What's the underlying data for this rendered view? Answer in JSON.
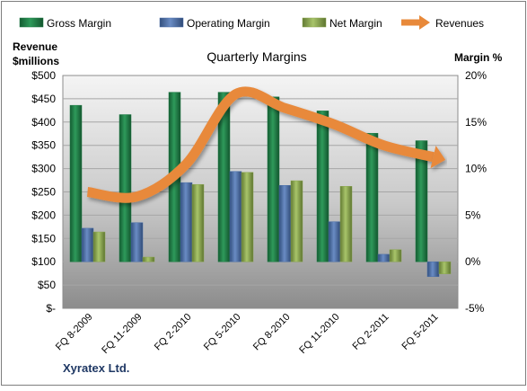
{
  "chart_data": {
    "type": "bar",
    "title": "Quarterly Margins",
    "company": "Xyratex Ltd.",
    "left_axis": {
      "label_line1": "Revenue",
      "label_line2": "$millions",
      "ylim": [
        0,
        500
      ],
      "ticks": [
        "$-",
        "$50",
        "$100",
        "$150",
        "$200",
        "$250",
        "$300",
        "$350",
        "$400",
        "$450",
        "$500"
      ]
    },
    "right_axis": {
      "label": "Margin %",
      "ylim": [
        -5,
        20
      ],
      "ticks": [
        "-5%",
        "0%",
        "5%",
        "10%",
        "15%",
        "20%"
      ]
    },
    "categories": [
      "FQ 8-2009",
      "FQ 11-2009",
      "FQ 2-2010",
      "FQ 5-2010",
      "FQ 8-2010",
      "FQ 11-2010",
      "FQ 2-2011",
      "FQ 5-2011"
    ],
    "series": [
      {
        "name": "Gross Margin",
        "type": "bar",
        "axis": "right",
        "color": "#1e7a45",
        "values": [
          16.8,
          15.8,
          18.2,
          18.2,
          17.7,
          16.2,
          13.8,
          13.0
        ]
      },
      {
        "name": "Operating Margin",
        "type": "bar",
        "axis": "right",
        "color": "#4a6fa8",
        "values": [
          3.6,
          4.2,
          8.5,
          9.7,
          8.2,
          4.3,
          0.8,
          -1.6
        ]
      },
      {
        "name": "Net Margin",
        "type": "bar",
        "axis": "right",
        "color": "#8aa64e",
        "values": [
          3.2,
          0.5,
          8.3,
          9.6,
          8.7,
          8.1,
          1.3,
          -1.3
        ]
      },
      {
        "name": "Revenues",
        "type": "line",
        "axis": "left",
        "color": "#e8893a",
        "values": [
          250,
          240,
          310,
          460,
          430,
          395,
          350,
          325
        ]
      }
    ],
    "grid": true,
    "legend_position": "top"
  }
}
